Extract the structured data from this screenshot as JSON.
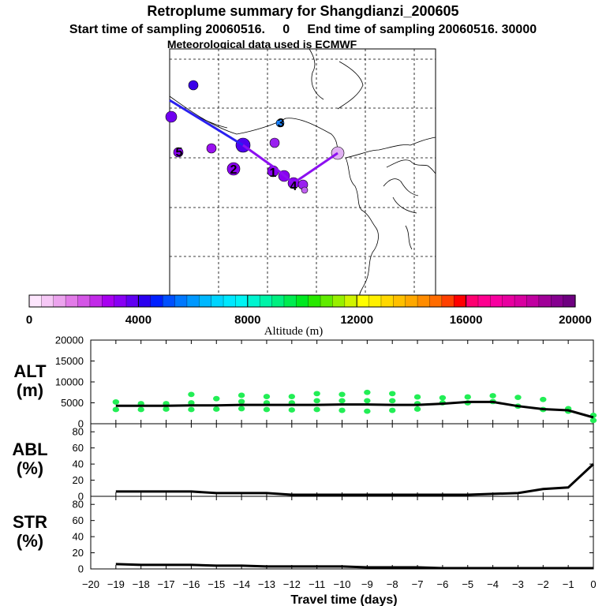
{
  "header": {
    "title": "Retroplume summary for Shangdianzi_200605",
    "line2": "Start time of sampling 20060516.     0     End time of sampling 20060516. 30000",
    "line3": "Meteorological data used is ECMWF"
  },
  "colorbar": {
    "label": "Altitude (m)",
    "ticks": [
      "0",
      "4000",
      "8000",
      "12000",
      "16000",
      "20000"
    ],
    "colors": [
      "#fde6fd",
      "#f6c8f6",
      "#eca4ee",
      "#e27be8",
      "#d456e6",
      "#c22ae8",
      "#a800f0",
      "#8800f4",
      "#6000f2",
      "#2a00f0",
      "#0020ff",
      "#0050ff",
      "#0078ff",
      "#0098ff",
      "#00b8ff",
      "#00d4ff",
      "#00e8ff",
      "#00f4f4",
      "#00f4d0",
      "#00f4a8",
      "#00f080",
      "#00ec50",
      "#00e820",
      "#28e800",
      "#60ec00",
      "#98f000",
      "#d0f400",
      "#ffff00",
      "#fff000",
      "#ffd800",
      "#ffc000",
      "#ffa800",
      "#ff8c00",
      "#ff6c00",
      "#ff4000",
      "#ff0000",
      "#ff0070",
      "#ff0090",
      "#f800a0",
      "#e800a0",
      "#d800a0",
      "#c000a0",
      "#a00098",
      "#860090",
      "#6e0080"
    ]
  },
  "map": {
    "markers": [
      "1",
      "2",
      "3",
      "4",
      "5"
    ]
  },
  "chart_data": [
    {
      "type": "line",
      "panel": "ALT",
      "ylabel_lines": [
        "ALT",
        "(m)"
      ],
      "ylim": [
        0,
        20000
      ],
      "yticks": [
        "0",
        "5000",
        "10000",
        "15000",
        "20000"
      ],
      "x": [
        -19,
        -18,
        -17,
        -16,
        -15,
        -14,
        -13,
        -12,
        -11,
        -10,
        -9,
        -8,
        -7,
        -6,
        -5,
        -4,
        -3,
        -2,
        -1,
        0
      ],
      "series": [
        {
          "name": "mean altitude",
          "values": [
            4300,
            4300,
            4300,
            4400,
            4400,
            4500,
            4500,
            4500,
            4500,
            4600,
            4600,
            4500,
            4500,
            4800,
            5200,
            5200,
            4200,
            3500,
            3200,
            1500
          ]
        }
      ],
      "spread_points": [
        [
          -19,
          5200
        ],
        [
          -19,
          3400
        ],
        [
          -18,
          4800
        ],
        [
          -18,
          3400
        ],
        [
          -17,
          4800
        ],
        [
          -17,
          3500
        ],
        [
          -16,
          7000
        ],
        [
          -16,
          5000
        ],
        [
          -16,
          3400
        ],
        [
          -15,
          6000
        ],
        [
          -15,
          3500
        ],
        [
          -14,
          6800
        ],
        [
          -14,
          5300
        ],
        [
          -14,
          3600
        ],
        [
          -13,
          6500
        ],
        [
          -13,
          5000
        ],
        [
          -13,
          3400
        ],
        [
          -12,
          6500
        ],
        [
          -12,
          5000
        ],
        [
          -12,
          3300
        ],
        [
          -11,
          7200
        ],
        [
          -11,
          5500
        ],
        [
          -11,
          3400
        ],
        [
          -10,
          7000
        ],
        [
          -10,
          5500
        ],
        [
          -10,
          3200
        ],
        [
          -9,
          7500
        ],
        [
          -9,
          5500
        ],
        [
          -9,
          3000
        ],
        [
          -8,
          7200
        ],
        [
          -8,
          5500
        ],
        [
          -8,
          3200
        ],
        [
          -7,
          6400
        ],
        [
          -7,
          4800
        ],
        [
          -7,
          3500
        ],
        [
          -6,
          6200
        ],
        [
          -6,
          5000
        ],
        [
          -5,
          6400
        ],
        [
          -5,
          5000
        ],
        [
          -4,
          6700
        ],
        [
          -4,
          5300
        ],
        [
          -3,
          6300
        ],
        [
          -3,
          4200
        ],
        [
          -2,
          5800
        ],
        [
          -2,
          3400
        ],
        [
          -1,
          3600
        ],
        [
          -1,
          3000
        ],
        [
          0,
          2000
        ],
        [
          0,
          800
        ]
      ]
    },
    {
      "type": "line",
      "panel": "ABL",
      "ylabel_lines": [
        "ABL",
        "(%)"
      ],
      "ylim": [
        0,
        90
      ],
      "yticks": [
        "0",
        "20",
        "40",
        "60",
        "80"
      ],
      "x": [
        -19,
        -18,
        -17,
        -16,
        -15,
        -14,
        -13,
        -12,
        -11,
        -10,
        -9,
        -8,
        -7,
        -6,
        -5,
        -4,
        -3,
        -2,
        -1,
        0
      ],
      "series": [
        {
          "name": "ABL fraction",
          "values": [
            6,
            6,
            6,
            6,
            4,
            4,
            4,
            2,
            2,
            2,
            2,
            2,
            2,
            2,
            2,
            3,
            4,
            9,
            11,
            40
          ]
        }
      ]
    },
    {
      "type": "line",
      "panel": "STR",
      "ylabel_lines": [
        "STR",
        "(%)"
      ],
      "ylim": [
        0,
        90
      ],
      "yticks": [
        "0",
        "20",
        "40",
        "60",
        "80"
      ],
      "x": [
        -19,
        -18,
        -17,
        -16,
        -15,
        -14,
        -13,
        -12,
        -11,
        -10,
        -9,
        -8,
        -7,
        -6,
        -5,
        -4,
        -3,
        -2,
        -1,
        0
      ],
      "xlabel": "Travel time (days)",
      "xticks": [
        "−20",
        "−19",
        "−18",
        "−17",
        "−16",
        "−15",
        "−14",
        "−13",
        "−12",
        "−11",
        "−10",
        "−9",
        "−8",
        "−7",
        "−6",
        "−5",
        "−4",
        "−3",
        "−2",
        "−1",
        "0"
      ],
      "series": [
        {
          "name": "stratospheric fraction",
          "values": [
            6,
            5,
            5,
            5,
            4,
            4,
            3,
            3,
            3,
            3,
            2,
            2,
            2,
            1,
            1,
            1,
            1,
            1,
            1,
            1
          ]
        }
      ]
    }
  ]
}
